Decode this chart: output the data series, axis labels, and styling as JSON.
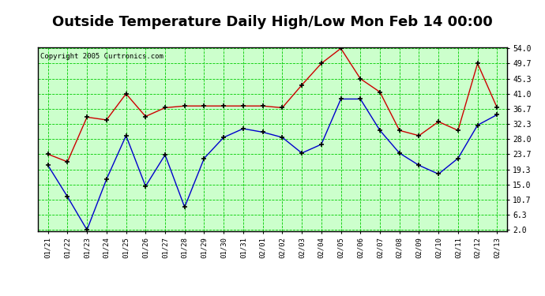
{
  "title": "Outside Temperature Daily High/Low Mon Feb 14 00:00",
  "copyright": "Copyright 2005 Curtronics.com",
  "x_labels": [
    "01/21",
    "01/22",
    "01/23",
    "01/24",
    "01/25",
    "01/26",
    "01/27",
    "01/28",
    "01/29",
    "01/30",
    "01/31",
    "02/01",
    "02/02",
    "02/03",
    "02/04",
    "02/05",
    "02/06",
    "02/07",
    "02/08",
    "02/09",
    "02/10",
    "02/11",
    "02/12",
    "02/13"
  ],
  "high_values": [
    23.7,
    21.5,
    34.3,
    33.5,
    41.0,
    34.5,
    37.0,
    37.5,
    37.5,
    37.5,
    37.5,
    37.5,
    37.0,
    43.5,
    49.7,
    54.0,
    45.3,
    41.5,
    30.5,
    29.0,
    33.0,
    30.5,
    49.7,
    37.0
  ],
  "low_values": [
    20.5,
    11.5,
    2.0,
    16.5,
    29.0,
    14.5,
    23.5,
    8.5,
    22.5,
    28.5,
    31.0,
    30.0,
    28.5,
    24.0,
    26.5,
    39.5,
    39.5,
    30.5,
    24.0,
    20.5,
    18.0,
    22.5,
    32.0,
    35.0
  ],
  "high_color": "#cc0000",
  "low_color": "#0000cc",
  "bg_color": "#ccffcc",
  "grid_color": "#00cc00",
  "title_fontsize": 13,
  "ytick_labels": [
    "2.0",
    "6.3",
    "10.7",
    "15.0",
    "19.3",
    "23.7",
    "28.0",
    "32.3",
    "36.7",
    "41.0",
    "45.3",
    "49.7",
    "54.0"
  ],
  "ytick_values": [
    2.0,
    6.3,
    10.7,
    15.0,
    19.3,
    23.7,
    28.0,
    32.3,
    36.7,
    41.0,
    45.3,
    49.7,
    54.0
  ],
  "ylim_min": 2.0,
  "ylim_max": 54.0,
  "marker": "+"
}
